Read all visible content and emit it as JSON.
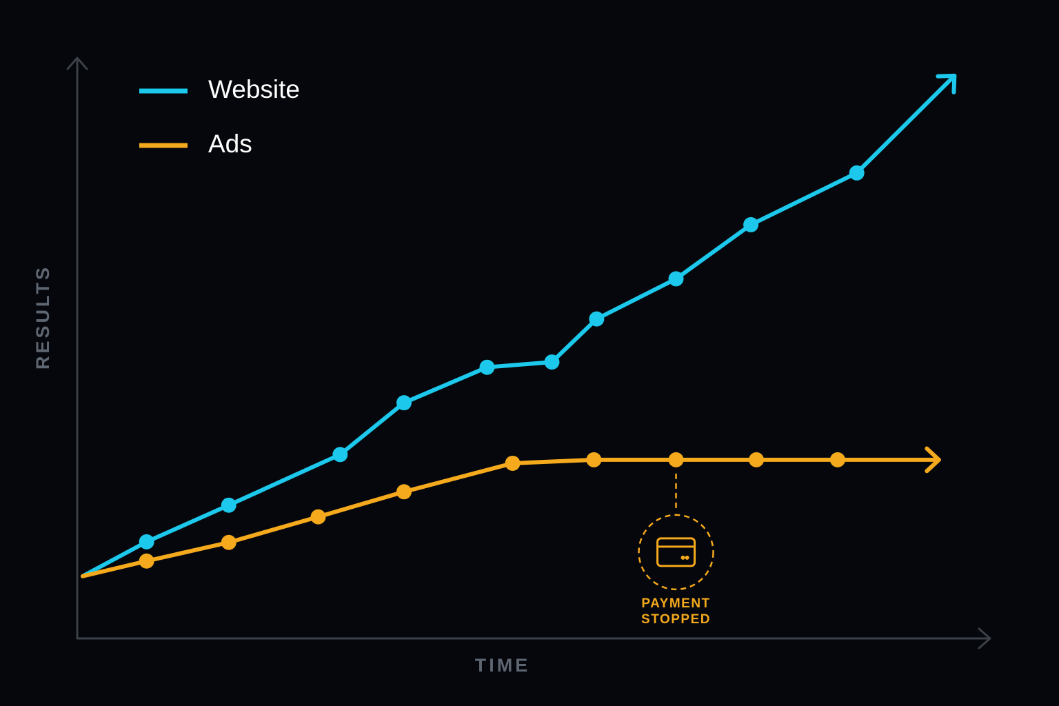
{
  "chart_data": {
    "type": "line",
    "x_label": "TIME",
    "y_label": "RESULTS",
    "xlim": [
      0,
      100
    ],
    "ylim": [
      0,
      100
    ],
    "series": [
      {
        "name": "Website",
        "color": "#1cc9ec",
        "x": [
          0.6,
          7.6,
          16.6,
          28.8,
          35.8,
          44.9,
          52.0,
          56.9,
          65.6,
          73.8,
          85.4,
          96.1
        ],
        "values": [
          10.7,
          16.6,
          22.9,
          31.6,
          40.5,
          46.6,
          47.5,
          54.9,
          61.8,
          71.1,
          80.0,
          96.7
        ]
      },
      {
        "name": "Ads",
        "color": "#f5a91d",
        "x": [
          0.6,
          7.6,
          16.6,
          26.4,
          35.8,
          47.7,
          56.6,
          65.6,
          74.4,
          83.3,
          94.4
        ],
        "values": [
          10.7,
          13.3,
          16.5,
          20.9,
          25.2,
          30.1,
          30.7,
          30.7,
          30.7,
          30.7,
          30.7
        ]
      }
    ],
    "annotation": {
      "lines": [
        "PAYMENT",
        "STOPPED"
      ],
      "x": 65.6,
      "y": 30.7,
      "color": "#f5a91d"
    }
  }
}
